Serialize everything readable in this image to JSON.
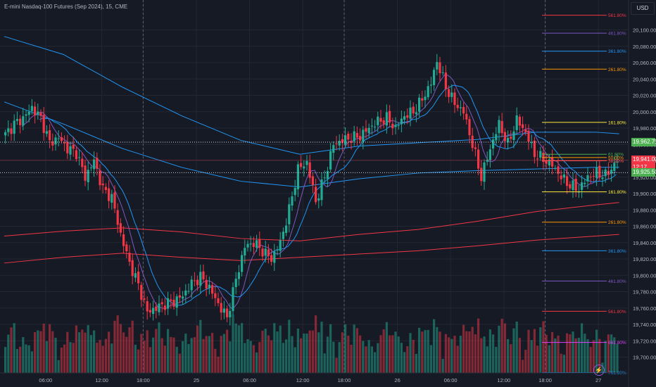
{
  "header": {
    "title": "E-mini Nasdaq-100 Futures (Sep 2024), 15, CME"
  },
  "currency": "USD",
  "colors": {
    "background": "#161a25",
    "up": "#22ab94",
    "down": "#f23645",
    "grid": "#232733",
    "axis_text": "#b2b5be"
  },
  "icons": {
    "lightning": "lightning-icon"
  },
  "chart_data": {
    "type": "candlestick",
    "y_axis": {
      "range": [
        19690,
        20110
      ],
      "ticks": [
        20100,
        20080,
        20060,
        20040,
        20020,
        20000,
        19980,
        19960,
        19940,
        19920,
        19900,
        19880,
        19860,
        19840,
        19820,
        19800,
        19780,
        19760,
        19740,
        19720,
        19700
      ],
      "tick_labels": [
        "20,100.00",
        "20,080.00",
        "20,060.00",
        "20,040.00",
        "20,020.00",
        "20,000.00",
        "19,980.00",
        "19,960.00",
        "19,940.00",
        "19,920.00",
        "19,900.00",
        "19,880.00",
        "19,860.00",
        "19,840.00",
        "19,820.00",
        "19,800.00",
        "19,780.00",
        "19,760.00",
        "19,740.00",
        "19,720.00",
        "19,700.00"
      ]
    },
    "x_axis": {
      "range": [
        0,
        220
      ],
      "ticks": [
        {
          "bar": 14,
          "label": "06:00"
        },
        {
          "bar": 33,
          "label": "12:00"
        },
        {
          "bar": 47,
          "label": "18:00"
        },
        {
          "bar": 65,
          "label": "25"
        },
        {
          "bar": 83,
          "label": "06:00"
        },
        {
          "bar": 101,
          "label": "12:00"
        },
        {
          "bar": 115,
          "label": "18:00"
        },
        {
          "bar": 133,
          "label": "26"
        },
        {
          "bar": 151,
          "label": "06:00"
        },
        {
          "bar": 169,
          "label": "12:00"
        },
        {
          "bar": 183,
          "label": "18:00"
        },
        {
          "bar": 201,
          "label": "27"
        }
      ],
      "session_breaks": [
        47,
        115,
        183
      ]
    },
    "price_markers": [
      {
        "label": "19,962.75",
        "value": 19962.75,
        "style": "green2"
      },
      {
        "label": "19,941.00",
        "value": 19941.0,
        "sub": "12:17",
        "style": "red"
      },
      {
        "label": "19,925.50",
        "value": 19925.5,
        "style": "green2"
      }
    ],
    "dotted_levels": [
      19962.75,
      19925.5
    ],
    "fib_levels": [
      {
        "label": "561.80%",
        "value": 20118,
        "color": "#f23645"
      },
      {
        "label": "461.80%",
        "value": 20096,
        "color": "#7e57c2"
      },
      {
        "label": "361.80%",
        "value": 20074,
        "color": "#2196f3"
      },
      {
        "label": "261.80%",
        "value": 20052,
        "color": "#ff9800"
      },
      {
        "label": "161.80%",
        "value": 19987,
        "color": "#ffeb3b"
      },
      {
        "label": "61.80%",
        "value": 19948,
        "color": "#4caf50"
      },
      {
        "label": "50.00%",
        "value": 19944,
        "color": "#ff9800"
      },
      {
        "label": "38.20%",
        "value": 19940,
        "color": "#ff5252"
      },
      {
        "label": "161.80%",
        "value": 19902,
        "color": "#ffeb3b"
      },
      {
        "label": "261.80%",
        "value": 19865,
        "color": "#ff9800"
      },
      {
        "label": "361.80%",
        "value": 19830,
        "color": "#2196f3"
      },
      {
        "label": "461.80%",
        "value": 19793,
        "color": "#7e57c2"
      },
      {
        "label": "561.80%",
        "value": 19756,
        "color": "#f23645"
      },
      {
        "label": "661.80%",
        "value": 19718,
        "color": "#e040fb"
      },
      {
        "label": "761.80%",
        "value": 19681,
        "color": "#2196f3"
      }
    ],
    "close_keypoints": [
      [
        0,
        19972
      ],
      [
        3,
        19985
      ],
      [
        6,
        19992
      ],
      [
        9,
        20005
      ],
      [
        12,
        19992
      ],
      [
        15,
        19962
      ],
      [
        18,
        19968
      ],
      [
        21,
        19955
      ],
      [
        24,
        19950
      ],
      [
        27,
        19920
      ],
      [
        30,
        19940
      ],
      [
        33,
        19905
      ],
      [
        36,
        19895
      ],
      [
        39,
        19850
      ],
      [
        42,
        19815
      ],
      [
        45,
        19788
      ],
      [
        48,
        19755
      ],
      [
        51,
        19760
      ],
      [
        54,
        19765
      ],
      [
        57,
        19768
      ],
      [
        60,
        19775
      ],
      [
        63,
        19790
      ],
      [
        66,
        19798
      ],
      [
        69,
        19785
      ],
      [
        72,
        19765
      ],
      [
        75,
        19748
      ],
      [
        78,
        19795
      ],
      [
        81,
        19835
      ],
      [
        84,
        19840
      ],
      [
        87,
        19830
      ],
      [
        90,
        19820
      ],
      [
        93,
        19840
      ],
      [
        96,
        19880
      ],
      [
        99,
        19930
      ],
      [
        102,
        19938
      ],
      [
        105,
        19890
      ],
      [
        108,
        19920
      ],
      [
        111,
        19960
      ],
      [
        114,
        19965
      ],
      [
        117,
        19968
      ],
      [
        120,
        19970
      ],
      [
        123,
        19980
      ],
      [
        126,
        19988
      ],
      [
        129,
        19992
      ],
      [
        132,
        19980
      ],
      [
        135,
        19995
      ],
      [
        138,
        20000
      ],
      [
        141,
        20015
      ],
      [
        144,
        20035
      ],
      [
        146,
        20062
      ],
      [
        149,
        20030
      ],
      [
        152,
        20010
      ],
      [
        155,
        20000
      ],
      [
        158,
        19960
      ],
      [
        161,
        19920
      ],
      [
        164,
        19955
      ],
      [
        167,
        19985
      ],
      [
        170,
        19960
      ],
      [
        173,
        19990
      ],
      [
        176,
        19975
      ],
      [
        179,
        19948
      ],
      [
        182,
        19942
      ],
      [
        185,
        19935
      ],
      [
        188,
        19920
      ],
      [
        191,
        19910
      ],
      [
        194,
        19905
      ],
      [
        197,
        19920
      ],
      [
        200,
        19925
      ],
      [
        203,
        19922
      ],
      [
        206,
        19935
      ],
      [
        207,
        19941
      ]
    ],
    "moving_averages": [
      {
        "name": "",
        "color": "#2196f3",
        "points": [
          [
            0,
            20092
          ],
          [
            20,
            20070
          ],
          [
            40,
            20030
          ],
          [
            60,
            19995
          ],
          [
            80,
            19965
          ],
          [
            100,
            19948
          ],
          [
            120,
            19958
          ],
          [
            140,
            19962
          ],
          [
            160,
            19966
          ],
          [
            180,
            19975
          ],
          [
            200,
            19975
          ],
          [
            208,
            19973
          ]
        ]
      },
      {
        "name": "",
        "color": "#2196f3",
        "points": [
          [
            0,
            20012
          ],
          [
            20,
            19985
          ],
          [
            40,
            19955
          ],
          [
            60,
            19932
          ],
          [
            80,
            19915
          ],
          [
            100,
            19908
          ],
          [
            120,
            19918
          ],
          [
            140,
            19925
          ],
          [
            160,
            19928
          ],
          [
            180,
            19930
          ],
          [
            200,
            19932
          ],
          [
            208,
            19932
          ]
        ]
      },
      {
        "name": "",
        "color": "#f23645",
        "points": [
          [
            0,
            19848
          ],
          [
            20,
            19854
          ],
          [
            40,
            19858
          ],
          [
            60,
            19853
          ],
          [
            80,
            19845
          ],
          [
            100,
            19842
          ],
          [
            120,
            19850
          ],
          [
            140,
            19856
          ],
          [
            160,
            19866
          ],
          [
            180,
            19878
          ],
          [
            200,
            19886
          ],
          [
            208,
            19889
          ]
        ]
      },
      {
        "name": "",
        "color": "#f23645",
        "points": [
          [
            0,
            19815
          ],
          [
            20,
            19822
          ],
          [
            40,
            19827
          ],
          [
            60,
            19822
          ],
          [
            80,
            19818
          ],
          [
            100,
            19822
          ],
          [
            120,
            19826
          ],
          [
            140,
            19830
          ],
          [
            160,
            19836
          ],
          [
            180,
            19843
          ],
          [
            200,
            19848
          ],
          [
            208,
            19850
          ]
        ]
      }
    ],
    "volume_max": 100
  }
}
